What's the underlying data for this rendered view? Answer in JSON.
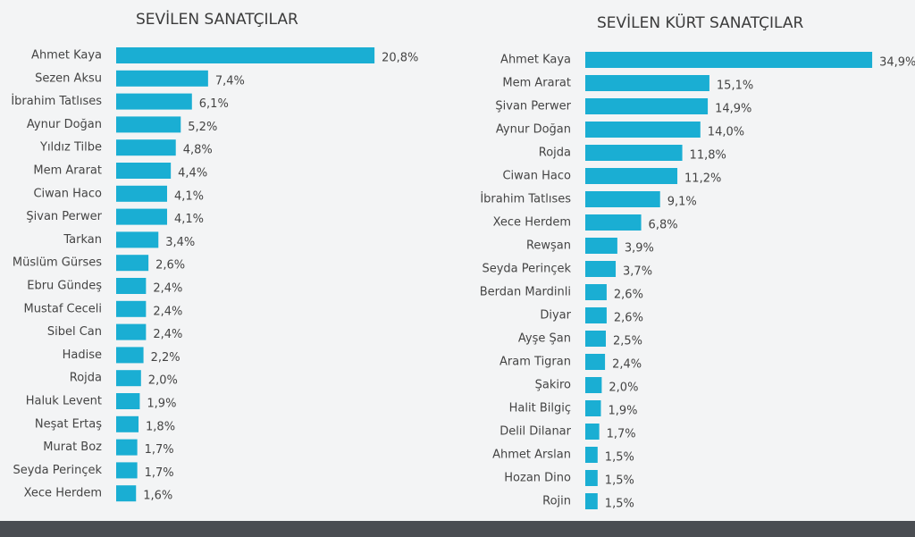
{
  "chart_data": [
    {
      "type": "bar",
      "orientation": "horizontal",
      "title": "SEVİLEN SANATÇILAR",
      "color": "#1aaed3",
      "categories": [
        "Ahmet Kaya",
        "Sezen Aksu",
        "İbrahim Tatlıses",
        "Aynur Doğan",
        "Yıldız Tilbe",
        "Mem Ararat",
        "Ciwan Haco",
        "Şivan Perwer",
        "Tarkan",
        "Müslüm Gürses",
        "Ebru Gündeş",
        "Mustaf Ceceli",
        "Sibel Can",
        "Hadise",
        "Rojda",
        "Haluk Levent",
        "Neşat Ertaş",
        "Murat Boz",
        "Seyda Perinçek",
        "Xece Herdem"
      ],
      "values": [
        20.8,
        7.4,
        6.1,
        5.2,
        4.8,
        4.4,
        4.1,
        4.1,
        3.4,
        2.6,
        2.4,
        2.4,
        2.4,
        2.2,
        2.0,
        1.9,
        1.8,
        1.7,
        1.7,
        1.6
      ],
      "value_labels": [
        "20,8%",
        "7,4%",
        "6,1%",
        "5,2%",
        "4,8%",
        "4,4%",
        "4,1%",
        "4,1%",
        "3,4%",
        "2,6%",
        "2,4%",
        "2,4%",
        "2,4%",
        "2,2%",
        "2,0%",
        "1,9%",
        "1,8%",
        "1,7%",
        "1,7%",
        "1,6%"
      ]
    },
    {
      "type": "bar",
      "orientation": "horizontal",
      "title": "SEVİLEN KÜRT SANATÇILAR",
      "color": "#1aaed3",
      "categories": [
        "Ahmet Kaya",
        "Mem Ararat",
        "Şivan Perwer",
        "Aynur Doğan",
        "Rojda",
        "Ciwan Haco",
        "İbrahim Tatlıses",
        "Xece Herdem",
        "Rewşan",
        "Seyda Perinçek",
        "Berdan Mardinli",
        "Diyar",
        "Ayşe Şan",
        "Aram Tigran",
        "Şakiro",
        "Halit Bilgiç",
        "Delil Dilanar",
        "Ahmet Arslan",
        "Hozan Dino",
        "Rojin"
      ],
      "values": [
        34.9,
        15.1,
        14.9,
        14.0,
        11.8,
        11.2,
        9.1,
        6.8,
        3.9,
        3.7,
        2.6,
        2.6,
        2.5,
        2.4,
        2.0,
        1.9,
        1.7,
        1.5,
        1.5,
        1.5
      ],
      "value_labels": [
        "34,9%",
        "15,1%",
        "14,9%",
        "14,0%",
        "11,8%",
        "11,2%",
        "9,1%",
        "6,8%",
        "3,9%",
        "3,7%",
        "2,6%",
        "2,6%",
        "2,5%",
        "2,4%",
        "2,0%",
        "1,9%",
        "1,7%",
        "1,5%",
        "1,5%",
        "1,5%"
      ]
    }
  ]
}
